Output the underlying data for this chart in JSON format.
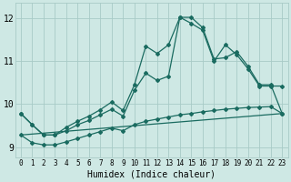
{
  "xlabel": "Humidex (Indice chaleur)",
  "bg_color": "#cee8e4",
  "grid_color": "#a8cbc7",
  "line_color": "#1a6b60",
  "xlim": [
    -0.5,
    23.5
  ],
  "ylim": [
    8.75,
    12.35
  ],
  "yticks": [
    9,
    10,
    11,
    12
  ],
  "xticks": [
    0,
    1,
    2,
    3,
    4,
    5,
    6,
    7,
    8,
    9,
    10,
    11,
    12,
    13,
    14,
    15,
    16,
    17,
    18,
    19,
    20,
    21,
    22,
    23
  ],
  "line1_x": [
    0,
    1,
    2,
    3,
    4,
    5,
    6,
    7,
    8,
    9,
    10,
    11,
    12,
    13,
    14,
    15,
    16,
    17,
    18,
    19,
    20,
    21,
    22,
    23
  ],
  "line1_y": [
    9.78,
    9.52,
    9.28,
    9.28,
    9.46,
    9.6,
    9.72,
    9.87,
    10.05,
    9.85,
    10.45,
    11.35,
    11.18,
    11.38,
    12.02,
    12.02,
    11.78,
    11.05,
    11.08,
    11.22,
    10.88,
    10.45,
    10.45,
    9.78
  ],
  "line2_x": [
    0,
    1,
    2,
    3,
    4,
    5,
    6,
    7,
    8,
    9,
    10,
    11,
    12,
    13,
    14,
    15,
    16,
    17,
    18,
    19,
    20,
    21,
    22,
    23
  ],
  "line2_y": [
    9.78,
    9.52,
    9.28,
    9.28,
    9.38,
    9.52,
    9.62,
    9.75,
    9.88,
    9.72,
    10.32,
    10.72,
    10.55,
    10.65,
    12.02,
    11.88,
    11.72,
    11.0,
    11.38,
    11.15,
    10.82,
    10.42,
    10.42,
    10.42
  ],
  "line3_x": [
    0,
    1,
    2,
    3,
    4,
    5,
    6,
    7,
    8,
    9,
    10,
    11,
    12,
    13,
    14,
    15,
    16,
    17,
    18,
    19,
    20,
    21,
    22,
    23
  ],
  "line3_y": [
    9.28,
    9.1,
    9.05,
    9.05,
    9.12,
    9.2,
    9.28,
    9.36,
    9.44,
    9.38,
    9.52,
    9.6,
    9.65,
    9.7,
    9.75,
    9.78,
    9.82,
    9.85,
    9.88,
    9.9,
    9.92,
    9.93,
    9.94,
    9.78
  ],
  "line4_x": [
    0,
    23
  ],
  "line4_y": [
    9.28,
    9.78
  ],
  "marker_size": 2.0,
  "linewidth": 0.9
}
